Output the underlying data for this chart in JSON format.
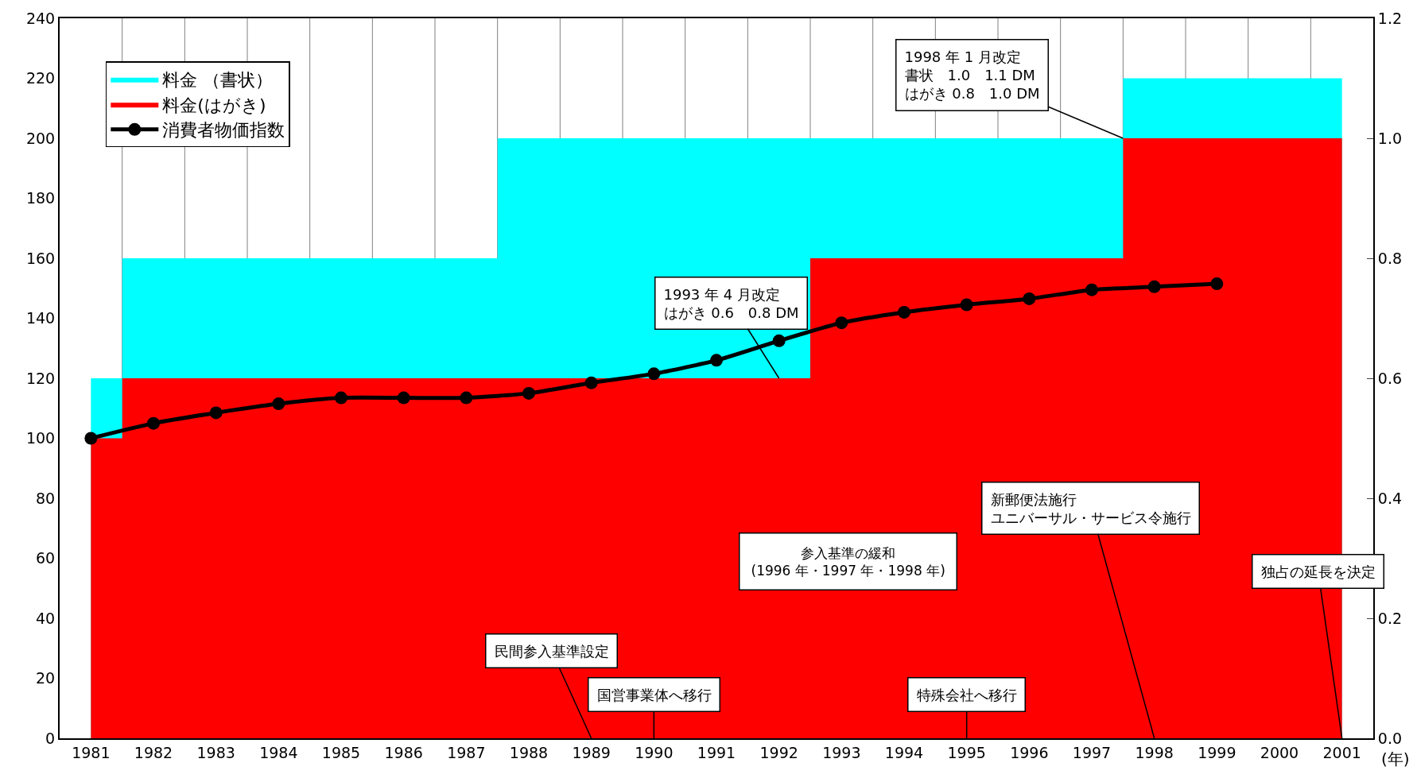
{
  "chart_data": {
    "type": "area",
    "categories": [
      "1981",
      "1982",
      "1983",
      "1984",
      "1985",
      "1986",
      "1987",
      "1988",
      "1989",
      "1990",
      "1991",
      "1992",
      "1993",
      "1994",
      "1995",
      "1996",
      "1997",
      "1998",
      "1999",
      "2000",
      "2001"
    ],
    "xlabel": "(年)",
    "series": [
      {
        "name": "料金 （書状）",
        "axis": "y2",
        "color": "#00ffff",
        "values": [
          0.6,
          0.8,
          0.8,
          0.8,
          0.8,
          0.8,
          0.8,
          1.0,
          1.0,
          1.0,
          1.0,
          1.0,
          1.0,
          1.0,
          1.0,
          1.0,
          1.0,
          1.1,
          1.1,
          1.1,
          1.1
        ]
      },
      {
        "name": "料金(はがき)",
        "axis": "y2",
        "color": "#ff0000",
        "values": [
          0.5,
          0.6,
          0.6,
          0.6,
          0.6,
          0.6,
          0.6,
          0.6,
          0.6,
          0.6,
          0.6,
          0.6,
          0.8,
          0.8,
          0.8,
          0.8,
          0.8,
          1.0,
          1.0,
          1.0,
          1.0
        ]
      },
      {
        "name": "消費者物価指数",
        "type": "line",
        "color": "#000000",
        "marker": "circle",
        "values": [
          100,
          105,
          108.5,
          111.5,
          113.5,
          113.5,
          113.5,
          115,
          118.5,
          121.5,
          126,
          132.5,
          138.5,
          142,
          144.5,
          146.5,
          149.5,
          150.5,
          151.5,
          null,
          null
        ]
      }
    ],
    "ylim": [
      0,
      240
    ],
    "yticks": [
      0,
      20,
      40,
      60,
      80,
      100,
      120,
      140,
      160,
      180,
      200,
      220,
      240
    ],
    "y2lim": [
      0,
      1.2
    ],
    "y2ticks": [
      {
        "value": 0,
        "label": "0.0"
      },
      {
        "value": 0.2,
        "label": "0.2"
      },
      {
        "value": 0.4,
        "label": "0.4"
      },
      {
        "value": 0.6,
        "label": "0.6"
      },
      {
        "value": 0.8,
        "label": "0.8"
      },
      {
        "value": 1.0,
        "label": "1.0"
      },
      {
        "value": 1.2,
        "label": "1.2"
      }
    ],
    "grid": "x",
    "legend": "top left",
    "annotations": [
      {
        "text": "1993 年 4 月改定はがき 0.6　0.8 DM",
        "x": "1992",
        "y": 120
      },
      {
        "text": "1998 年 1 月改定書状　1.0　1.1 DM\nはがき 0.8　1.0 DM",
        "y": 200
      },
      {
        "text": "民間参入基準設定",
        "x": "1989"
      },
      {
        "text": "国営事業体へ移行",
        "x": "1990"
      },
      {
        "text": "特殊会社へ移行",
        "x": "1995"
      },
      {
        "text": "新郵便法施行ユニバーサル・サービス令施行",
        "x": "1998"
      },
      {
        "text": "独占の延長を決定",
        "x": "2001"
      },
      "参入基準の緩和\n(1996 年・1997 年・1998 年)"
    ]
  }
}
